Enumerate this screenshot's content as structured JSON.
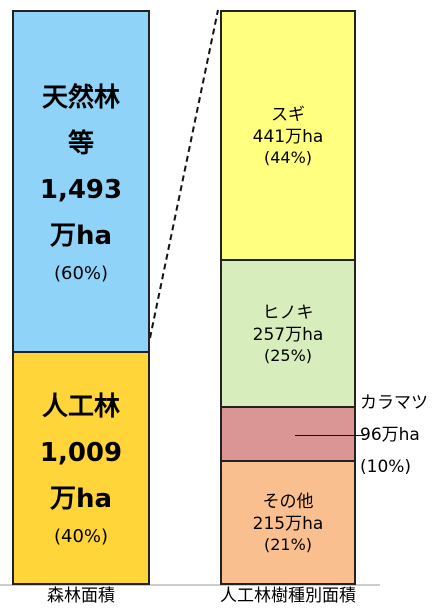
{
  "chart_data": {
    "type": "stacked_bar",
    "categories": [
      "森林面積",
      "人工林樹種別面積"
    ],
    "bars": [
      {
        "segments": [
          {
            "name": "天然林等",
            "value": 1493,
            "value_label": "1,493万ha",
            "percent": 60,
            "percent_label": "(60%)",
            "color": "#8fd3f8"
          },
          {
            "name": "人工林",
            "value": 1009,
            "value_label": "1,009万ha",
            "percent": 40,
            "percent_label": "(40%)",
            "color": "#ffd53a"
          }
        ]
      },
      {
        "segments": [
          {
            "name": "スギ",
            "value": 441,
            "value_label": "441万ha",
            "percent": 44,
            "percent_label": "(44%)",
            "color": "#ffff80"
          },
          {
            "name": "ヒノキ",
            "value": 257,
            "value_label": "257万ha",
            "percent": 25,
            "percent_label": "(25%)",
            "color": "#d7edbb"
          },
          {
            "name": "カラマツ",
            "value": 96,
            "value_label": "96万ha",
            "percent": 10,
            "percent_label": "(10%)",
            "color": "#d99694",
            "label_position": "outside"
          },
          {
            "name": "その他",
            "value": 215,
            "value_label": "215万ha",
            "percent": 21,
            "percent_label": "(21%)",
            "color": "#f9bf8f"
          }
        ]
      }
    ]
  }
}
